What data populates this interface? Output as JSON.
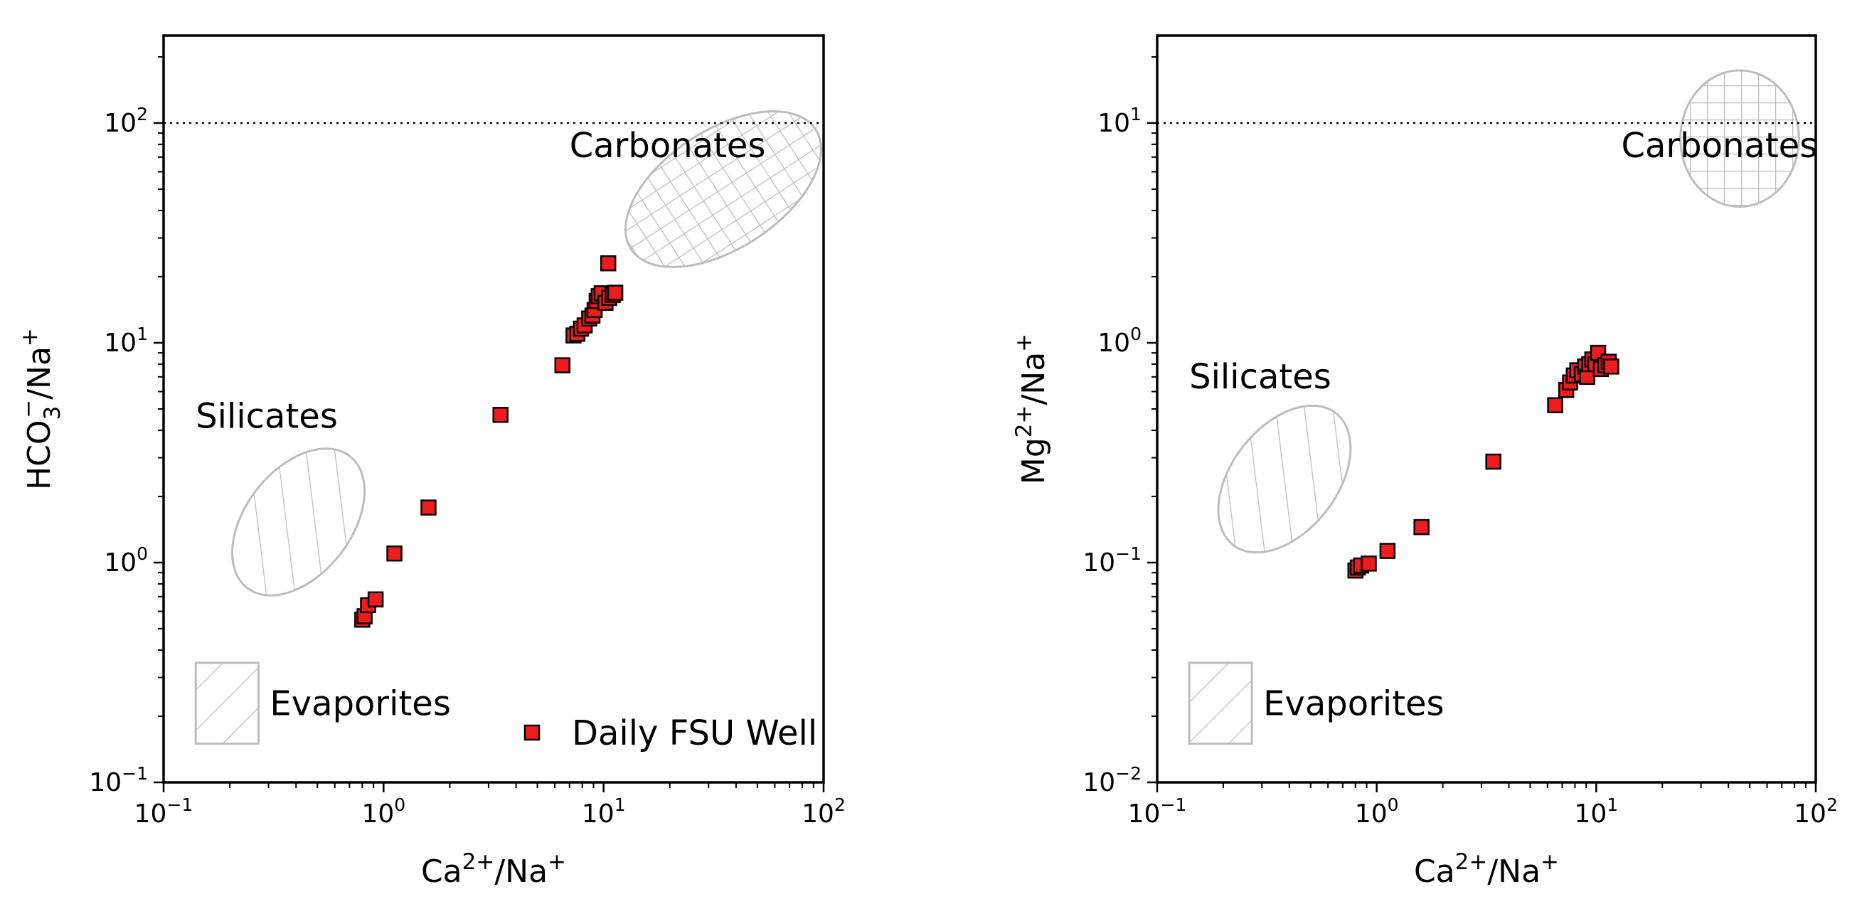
{
  "chart_data": [
    {
      "type": "scatter",
      "x_scale": "log",
      "y_scale": "log",
      "xlim": [
        0.1,
        100
      ],
      "ylim": [
        0.1,
        250
      ],
      "xticks": [
        {
          "value": 0.1,
          "base": "10",
          "exp": "−1"
        },
        {
          "value": 1,
          "base": "10",
          "exp": "0"
        },
        {
          "value": 10,
          "base": "10",
          "exp": "1"
        },
        {
          "value": 100,
          "base": "10",
          "exp": "2"
        }
      ],
      "yticks": [
        {
          "value": 0.1,
          "base": "10",
          "exp": "−1"
        },
        {
          "value": 1,
          "base": "10",
          "exp": "0"
        },
        {
          "value": 10,
          "base": "10",
          "exp": "1"
        },
        {
          "value": 100,
          "base": "10",
          "exp": "2"
        }
      ],
      "xlabel": {
        "base1": "Ca",
        "sup1": "2+",
        "base2": "/Na",
        "sup2": "+"
      },
      "ylabel": {
        "base1": "HCO",
        "sub1": "3",
        "sup1": "−",
        "base2": "/Na",
        "sup2": "+"
      },
      "reference_line": {
        "y": 100,
        "style": "dotted"
      },
      "regions": [
        {
          "name": "Carbonates",
          "label": "Carbonates",
          "hatch": "grid",
          "center": [
            35,
            50
          ],
          "log_rx": 0.5,
          "log_ry": 0.27,
          "rotation_deg": -33,
          "label_at": [
            7,
            70
          ]
        },
        {
          "name": "Silicates",
          "label": "Silicates",
          "hatch": "diagonal",
          "center": [
            0.41,
            1.53
          ],
          "log_rx": 0.24,
          "log_ry": 0.38,
          "rotation_deg": 38,
          "label_at": [
            0.14,
            4.1
          ]
        }
      ],
      "evaporites_box": {
        "label": "Evaporites",
        "x": [
          0.14,
          0.27
        ],
        "y": [
          0.15,
          0.35
        ]
      },
      "legend": {
        "label": "Daily FSU Well",
        "position": "lower-right"
      },
      "series": [
        {
          "name": "Daily FSU Well",
          "marker": "square",
          "color": "#ee1c1c",
          "points": [
            [
              0.8,
              0.55
            ],
            [
              0.82,
              0.57
            ],
            [
              0.85,
              0.64
            ],
            [
              0.92,
              0.68
            ],
            [
              1.12,
              1.1
            ],
            [
              1.6,
              1.78
            ],
            [
              3.4,
              4.7
            ],
            [
              6.5,
              7.9
            ],
            [
              7.3,
              10.8
            ],
            [
              7.6,
              11.0
            ],
            [
              7.9,
              11.6
            ],
            [
              8.2,
              12.0
            ],
            [
              8.6,
              12.9
            ],
            [
              8.9,
              13.3
            ],
            [
              9.1,
              14.1
            ],
            [
              9.3,
              15.5
            ],
            [
              9.5,
              16.3
            ],
            [
              9.8,
              16.8
            ],
            [
              10.2,
              15.2
            ],
            [
              10.6,
              16.0
            ],
            [
              11.0,
              16.5
            ],
            [
              11.3,
              16.9
            ],
            [
              10.5,
              23.0
            ]
          ]
        }
      ]
    },
    {
      "type": "scatter",
      "x_scale": "log",
      "y_scale": "log",
      "xlim": [
        0.1,
        100
      ],
      "ylim": [
        0.01,
        25
      ],
      "xticks": [
        {
          "value": 0.1,
          "base": "10",
          "exp": "−1"
        },
        {
          "value": 1,
          "base": "10",
          "exp": "0"
        },
        {
          "value": 10,
          "base": "10",
          "exp": "1"
        },
        {
          "value": 100,
          "base": "10",
          "exp": "2"
        }
      ],
      "yticks": [
        {
          "value": 0.01,
          "base": "10",
          "exp": "−2"
        },
        {
          "value": 0.1,
          "base": "10",
          "exp": "−1"
        },
        {
          "value": 1,
          "base": "10",
          "exp": "0"
        },
        {
          "value": 10,
          "base": "10",
          "exp": "1"
        }
      ],
      "xlabel": {
        "base1": "Ca",
        "sup1": "2+",
        "base2": "/Na",
        "sup2": "+"
      },
      "ylabel": {
        "base1": "Mg",
        "sup1": "2+",
        "base2": "/Na",
        "sup2": "+"
      },
      "reference_line": {
        "y": 10,
        "style": "dotted"
      },
      "regions": [
        {
          "name": "Carbonates",
          "label": "Carbonates",
          "hatch": "grid",
          "center": [
            45,
            8.5
          ],
          "log_rx": 0.27,
          "log_ry": 0.31,
          "rotation_deg": 0,
          "label_at": [
            13,
            7
          ]
        },
        {
          "name": "Silicates",
          "label": "Silicates",
          "hatch": "diagonal",
          "center": [
            0.38,
            0.24
          ],
          "log_rx": 0.24,
          "log_ry": 0.38,
          "rotation_deg": 38,
          "label_at": [
            0.14,
            0.62
          ]
        }
      ],
      "evaporites_box": {
        "label": "Evaporites",
        "x": [
          0.14,
          0.27
        ],
        "y": [
          0.015,
          0.035
        ]
      },
      "series": [
        {
          "name": "Daily FSU Well",
          "marker": "square",
          "color": "#ee1c1c",
          "points": [
            [
              0.8,
              0.092
            ],
            [
              0.82,
              0.095
            ],
            [
              0.85,
              0.097
            ],
            [
              0.92,
              0.099
            ],
            [
              1.12,
              0.113
            ],
            [
              1.6,
              0.145
            ],
            [
              3.4,
              0.288
            ],
            [
              6.5,
              0.52
            ],
            [
              7.3,
              0.61
            ],
            [
              7.6,
              0.66
            ],
            [
              7.9,
              0.71
            ],
            [
              8.2,
              0.75
            ],
            [
              8.6,
              0.72
            ],
            [
              8.9,
              0.78
            ],
            [
              9.1,
              0.7
            ],
            [
              9.3,
              0.8
            ],
            [
              9.6,
              0.84
            ],
            [
              9.9,
              0.8
            ],
            [
              10.2,
              0.9
            ],
            [
              10.5,
              0.76
            ],
            [
              11.0,
              0.79
            ],
            [
              11.4,
              0.82
            ],
            [
              11.7,
              0.78
            ]
          ]
        }
      ]
    }
  ]
}
